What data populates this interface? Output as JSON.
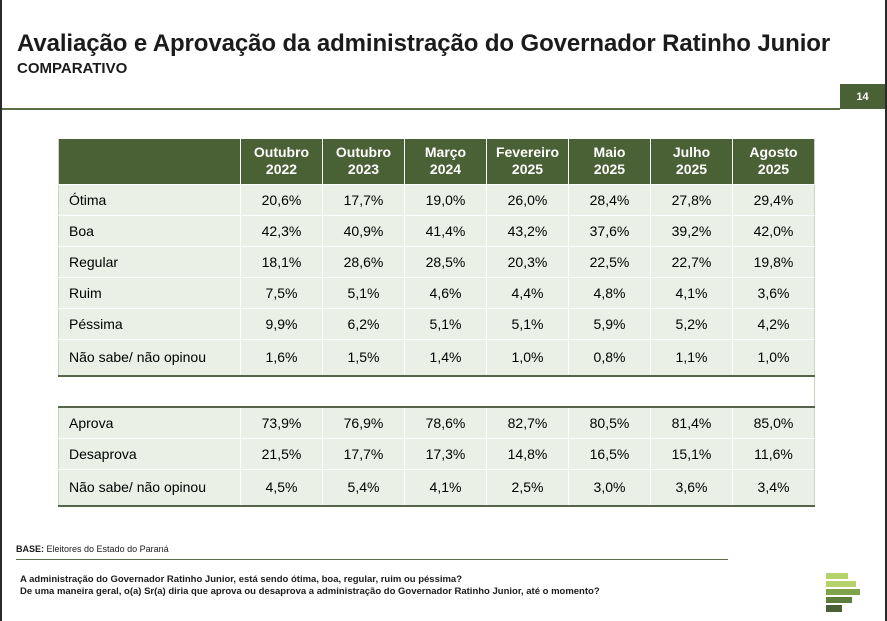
{
  "header": {
    "title": "Avaliação e Aprovação da administração do Governador Ratinho Junior",
    "subtitle": "COMPARATIVO",
    "page_number": "14"
  },
  "table": {
    "columns": [
      {
        "line1": "Outubro",
        "line2": "2022"
      },
      {
        "line1": "Outubro",
        "line2": "2023"
      },
      {
        "line1": "Março",
        "line2": "2024"
      },
      {
        "line1": "Fevereiro",
        "line2": "2025"
      },
      {
        "line1": "Maio",
        "line2": "2025"
      },
      {
        "line1": "Julho",
        "line2": "2025"
      },
      {
        "line1": "Agosto",
        "line2": "2025"
      }
    ],
    "evaluation_rows": [
      {
        "label": "Ótima",
        "values": [
          "20,6%",
          "17,7%",
          "19,0%",
          "26,0%",
          "28,4%",
          "27,8%",
          "29,4%"
        ]
      },
      {
        "label": "Boa",
        "values": [
          "42,3%",
          "40,9%",
          "41,4%",
          "43,2%",
          "37,6%",
          "39,2%",
          "42,0%"
        ]
      },
      {
        "label": "Regular",
        "values": [
          "18,1%",
          "28,6%",
          "28,5%",
          "20,3%",
          "22,5%",
          "22,7%",
          "19,8%"
        ]
      },
      {
        "label": "Ruim",
        "values": [
          "7,5%",
          "5,1%",
          "4,6%",
          "4,4%",
          "4,8%",
          "4,1%",
          "3,6%"
        ]
      },
      {
        "label": "Péssima",
        "values": [
          "9,9%",
          "6,2%",
          "5,1%",
          "5,1%",
          "5,9%",
          "5,2%",
          "4,2%"
        ]
      },
      {
        "label": "Não sabe/ não opinou",
        "values": [
          "1,6%",
          "1,5%",
          "1,4%",
          "1,0%",
          "0,8%",
          "1,1%",
          "1,0%"
        ]
      }
    ],
    "approval_rows": [
      {
        "label": "Aprova",
        "values": [
          "73,9%",
          "76,9%",
          "78,6%",
          "82,7%",
          "80,5%",
          "81,4%",
          "85,0%"
        ]
      },
      {
        "label": "Desaprova",
        "values": [
          "21,5%",
          "17,7%",
          "17,3%",
          "14,8%",
          "16,5%",
          "15,1%",
          "11,6%"
        ]
      },
      {
        "label": "Não sabe/ não opinou",
        "values": [
          "4,5%",
          "5,4%",
          "4,1%",
          "2,5%",
          "3,0%",
          "3,6%",
          "3,4%"
        ]
      }
    ]
  },
  "footer": {
    "base_label": "BASE:",
    "base_text": "Eleitores do Estado do Paraná",
    "question1": "A administração do Governador Ratinho Junior, está sendo ótima, boa, regular, ruim ou péssima?",
    "question2": "De uma maneira geral, o(a) Sr(a) diria que aprova ou desaprova a administração do Governador Ratinho Junior, até o momento?"
  },
  "colors": {
    "header_green": "#4a6135",
    "row_light_green": "#eaf0e5",
    "logo_light": "#b5d36a",
    "logo_dark": "#4a6135"
  },
  "icons": {
    "logo": "stacked-bars-logo"
  }
}
